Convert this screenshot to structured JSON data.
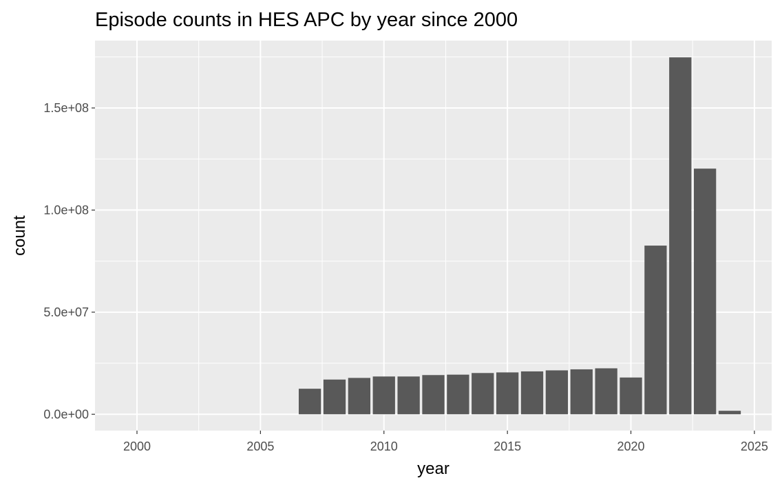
{
  "chart_data": {
    "type": "bar",
    "title": "Episode counts in HES APC by year since 2000",
    "xlabel": "year",
    "ylabel": "count",
    "x_ticks": [
      "2000",
      "2005",
      "2010",
      "2015",
      "2020",
      "2025"
    ],
    "y_ticks": [
      "0.0e+00",
      "5.0e+07",
      "1.0e+08",
      "1.5e+08"
    ],
    "xlim": [
      1998.3,
      2025.7
    ],
    "ylim": [
      -8000000,
      183000000
    ],
    "grid": true,
    "legend": "none",
    "colors": {
      "panel": "#ebebeb",
      "grid": "#ffffff",
      "bar": "#595959",
      "tick": "#333333"
    },
    "categories": [
      2007,
      2008,
      2009,
      2010,
      2011,
      2012,
      2013,
      2014,
      2015,
      2016,
      2017,
      2018,
      2019,
      2020,
      2021,
      2022,
      2023,
      2024
    ],
    "values": [
      12500000,
      17000000,
      17800000,
      18500000,
      18500000,
      19200000,
      19400000,
      20200000,
      20500000,
      21000000,
      21500000,
      22000000,
      22500000,
      18000000,
      82600000,
      174800000,
      120300000,
      1700000
    ]
  }
}
